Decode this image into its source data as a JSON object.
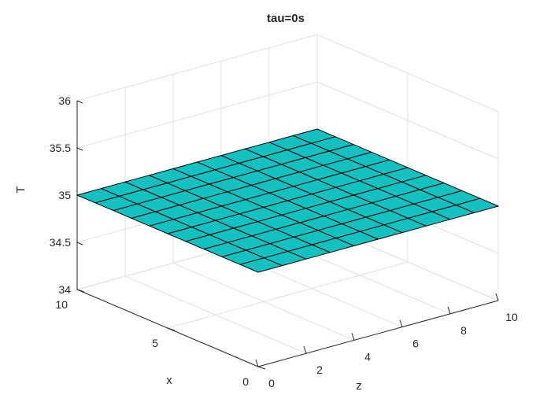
{
  "chart_data": {
    "type": "surface",
    "title": "tau=0s",
    "xlabel": "x",
    "ylabel": "z",
    "zlabel": "T",
    "x_range": [
      0,
      10
    ],
    "y_range": [
      0,
      10
    ],
    "z_range": [
      34,
      36
    ],
    "x_ticks": [
      0,
      5,
      10
    ],
    "y_ticks": [
      0,
      2,
      4,
      6,
      8,
      10
    ],
    "z_ticks": [
      34,
      34.5,
      35,
      35.5,
      36
    ],
    "x_tick_labels": [
      "0",
      "5",
      "10"
    ],
    "y_tick_labels": [
      "0",
      "2",
      "4",
      "6",
      "8",
      "10"
    ],
    "z_tick_labels": [
      "34",
      "34.5",
      "35",
      "35.5",
      "36"
    ],
    "x_grid": [
      0,
      1,
      2,
      3,
      4,
      5,
      6,
      7,
      8,
      9,
      10
    ],
    "y_grid": [
      0,
      1,
      2,
      3,
      4,
      5,
      6,
      7,
      8,
      9,
      10
    ],
    "surface_value": 35,
    "surface_color": "#14c1c1",
    "grid": true
  }
}
